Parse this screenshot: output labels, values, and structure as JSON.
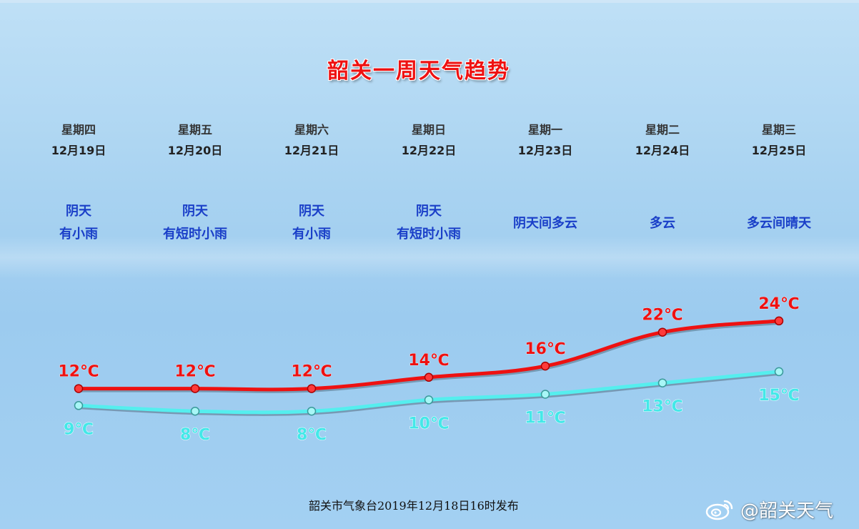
{
  "title": "韶关一周天气趋势",
  "days": [
    {
      "weekday": "星期四",
      "date": "12月19日",
      "weather": [
        "阴天",
        "有小雨"
      ]
    },
    {
      "weekday": "星期五",
      "date": "12月20日",
      "weather": [
        "阴天",
        "有短时小雨"
      ]
    },
    {
      "weekday": "星期六",
      "date": "12月21日",
      "weather": [
        "阴天",
        "有小雨"
      ]
    },
    {
      "weekday": "星期日",
      "date": "12月22日",
      "weather": [
        "阴天",
        "有短时小雨"
      ]
    },
    {
      "weekday": "星期一",
      "date": "12月23日",
      "weather": [
        "阴天间多云"
      ]
    },
    {
      "weekday": "星期二",
      "date": "12月24日",
      "weather": [
        "多云"
      ]
    },
    {
      "weekday": "星期三",
      "date": "12月25日",
      "weather": [
        "多云间晴天"
      ]
    }
  ],
  "chart_data": {
    "type": "line",
    "categories": [
      "12月19日",
      "12月20日",
      "12月21日",
      "12月22日",
      "12月23日",
      "12月24日",
      "12月25日"
    ],
    "series": [
      {
        "values": [
          12,
          12,
          12,
          14,
          16,
          22,
          24
        ],
        "labels": [
          "12℃",
          "12℃",
          "12℃",
          "14℃",
          "16℃",
          "22℃",
          "24℃"
        ],
        "color": "#ee1111"
      },
      {
        "values": [
          9,
          8,
          8,
          10,
          11,
          13,
          15
        ],
        "labels": [
          "9℃",
          "8℃",
          "8℃",
          "10℃",
          "11℃",
          "13℃",
          "15℃"
        ],
        "color": "#55eeee"
      }
    ],
    "grid": false,
    "legend": "none"
  },
  "footer": "韶关市气象台2019年12月18日16时发布",
  "watermark": "@韶关天气",
  "colors": {
    "title": "#ee1111",
    "weather_text": "#1a3fc8",
    "high_line": "#ee1111",
    "low_line": "#55eeee"
  }
}
